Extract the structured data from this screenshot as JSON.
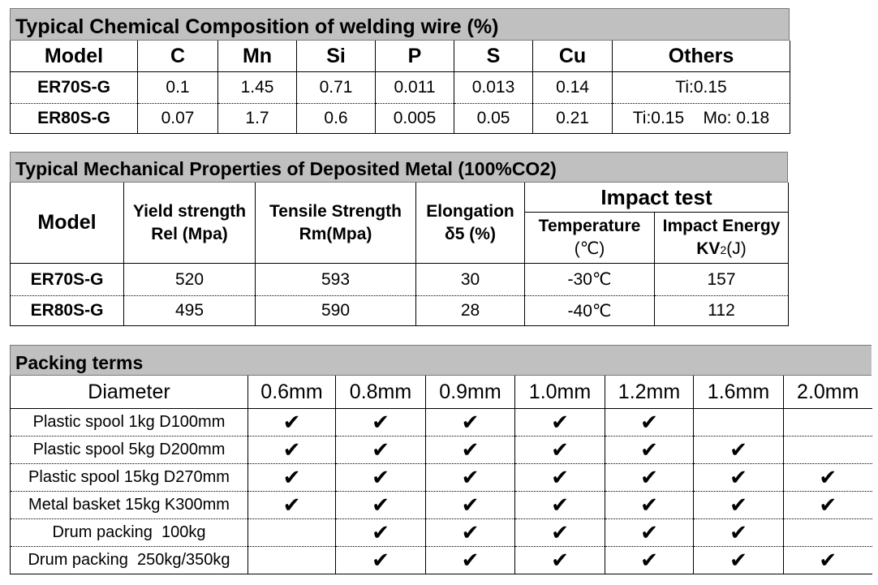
{
  "chemical": {
    "title": "Typical Chemical Composition of welding wire (%)",
    "headers": [
      "Model",
      "C",
      "Mn",
      "Si",
      "P",
      "S",
      "Cu",
      "Others"
    ],
    "rows": [
      {
        "model": "ER70S-G",
        "c": "0.1",
        "mn": "1.45",
        "si": "0.71",
        "p": "0.011",
        "s": "0.013",
        "cu": "0.14",
        "others": "Ti:0.15"
      },
      {
        "model": "ER80S-G",
        "c": "0.07",
        "mn": "1.7",
        "si": "0.6",
        "p": "0.005",
        "s": "0.05",
        "cu": "0.21",
        "others": "Ti:0.15    Mo: 0.18"
      }
    ]
  },
  "mechanical": {
    "title": "Typical Mechanical Properties of Deposited Metal (100%CO2)",
    "model_header": "Model",
    "yield_header": [
      "Yield strength",
      "Rel (Mpa)"
    ],
    "tensile_header": [
      "Tensile Strength",
      "Rm(Mpa)"
    ],
    "elongation_header": [
      "Elongation",
      "δ5 (%)"
    ],
    "impact_header": "Impact test",
    "temperature_header": [
      "Temperature",
      "(℃)"
    ],
    "energy_header": {
      "line1": "Impact Energy",
      "kv": "KV",
      "sub": "2",
      "unit": "(J)"
    },
    "rows": [
      {
        "model": "ER70S-G",
        "yield": "520",
        "tensile": "593",
        "elongation": "30",
        "temperature": "-30℃",
        "energy": "157"
      },
      {
        "model": "ER80S-G",
        "yield": "495",
        "tensile": "590",
        "elongation": "28",
        "temperature": "-40℃",
        "energy": "112"
      }
    ]
  },
  "packing": {
    "title": "Packing terms",
    "diameter_header": "Diameter",
    "sizes": [
      "0.6mm",
      "0.8mm",
      "0.9mm",
      "1.0mm",
      "1.2mm",
      "1.6mm",
      "2.0mm"
    ],
    "check_glyph": "✔",
    "rows": [
      {
        "label": "Plastic spool 1kg D100mm",
        "available": [
          true,
          true,
          true,
          true,
          true,
          false,
          false
        ]
      },
      {
        "label": "Plastic spool 5kg D200mm",
        "available": [
          true,
          true,
          true,
          true,
          true,
          true,
          false
        ]
      },
      {
        "label": "Plastic spool 15kg D270mm",
        "available": [
          true,
          true,
          true,
          true,
          true,
          true,
          true
        ]
      },
      {
        "label": "Metal basket 15kg K300mm",
        "available": [
          true,
          true,
          true,
          true,
          true,
          true,
          true
        ]
      },
      {
        "label": "Drum packing  100kg",
        "available": [
          false,
          true,
          true,
          true,
          true,
          true,
          false
        ]
      },
      {
        "label": "Drum packing  250kg/350kg",
        "available": [
          false,
          true,
          true,
          true,
          true,
          true,
          true
        ]
      }
    ]
  }
}
